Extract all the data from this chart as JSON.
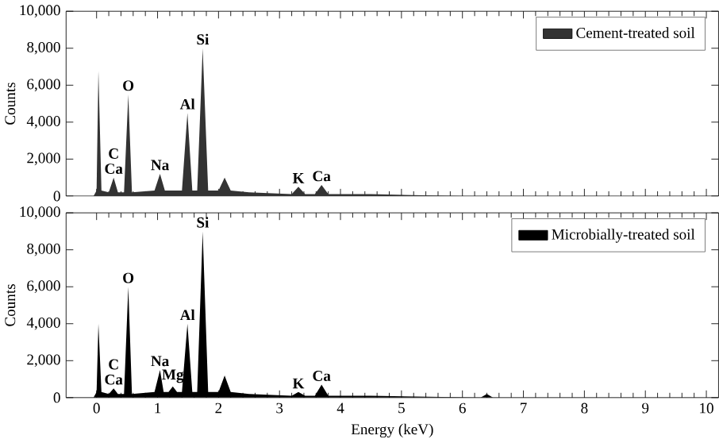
{
  "chart_data": [
    {
      "type": "area",
      "ylabel": "Counts",
      "xlim": [
        -0.5,
        10.2
      ],
      "ylim": [
        0,
        10000
      ],
      "tick_labels": "y",
      "legend": "top right",
      "xticks": [
        0,
        1,
        2,
        3,
        4,
        5,
        6,
        7,
        8,
        9,
        10
      ],
      "yticks": [
        0,
        {
          "value": 2000,
          "label": "2,000"
        },
        {
          "value": 4000,
          "label": "4,000"
        },
        {
          "value": 6000,
          "label": "6,000"
        },
        {
          "value": 8000,
          "label": "8,000"
        },
        {
          "value": 10000,
          "label": "10,000"
        }
      ],
      "series": [
        {
          "name": "Cement-treated soil",
          "color": "#333333",
          "x": [
            -0.05,
            0.0,
            0.03,
            0.08,
            0.2,
            0.28,
            0.35,
            0.45,
            0.52,
            0.58,
            0.95,
            1.04,
            1.12,
            1.4,
            1.49,
            1.57,
            1.65,
            1.74,
            1.83,
            2.0,
            2.1,
            2.2,
            2.5,
            3.2,
            3.31,
            3.42,
            3.58,
            3.69,
            3.8,
            4.5,
            6.0,
            10.0
          ],
          "values": [
            0,
            300,
            6800,
            300,
            200,
            1000,
            200,
            200,
            5500,
            200,
            300,
            1200,
            300,
            300,
            4500,
            300,
            300,
            8000,
            300,
            300,
            1000,
            300,
            200,
            100,
            500,
            100,
            100,
            600,
            100,
            100,
            0,
            0
          ]
        }
      ],
      "annotations": [
        {
          "text": "Si",
          "x": 1.74,
          "y": 8000
        },
        {
          "text": "O",
          "x": 0.52,
          "y": 5500
        },
        {
          "text": "Al",
          "x": 1.49,
          "y": 4500
        },
        {
          "text": "Na",
          "x": 1.04,
          "y": 1200
        },
        {
          "text": "C",
          "x": 0.28,
          "y": 1000
        },
        {
          "text": "Ca",
          "x": 0.28,
          "y": 1000
        },
        {
          "text": "K",
          "x": 3.31,
          "y": 500
        },
        {
          "text": "Ca",
          "x": 3.69,
          "y": 600
        }
      ]
    },
    {
      "type": "area",
      "xlabel": "Energy (keV)",
      "ylabel": "Counts",
      "xlim": [
        -0.5,
        10.2
      ],
      "ylim": [
        0,
        10000
      ],
      "legend": "top right",
      "xticks": [
        0,
        1,
        2,
        3,
        4,
        5,
        6,
        7,
        8,
        9,
        10
      ],
      "yticks": [
        0,
        {
          "value": 2000,
          "label": "2,000"
        },
        {
          "value": 4000,
          "label": "4,000"
        },
        {
          "value": 6000,
          "label": "6,000"
        },
        {
          "value": 8000,
          "label": "8,000"
        },
        {
          "value": 10000,
          "label": "10,000"
        }
      ],
      "series": [
        {
          "name": "Microbially-treated soil",
          "color": "#000000",
          "x": [
            -0.05,
            0.0,
            0.03,
            0.08,
            0.2,
            0.28,
            0.35,
            0.45,
            0.52,
            0.58,
            0.95,
            1.04,
            1.1,
            1.18,
            1.25,
            1.32,
            1.4,
            1.49,
            1.57,
            1.65,
            1.74,
            1.83,
            2.0,
            2.1,
            2.2,
            2.5,
            3.2,
            3.31,
            3.42,
            3.58,
            3.69,
            3.8,
            4.5,
            6.3,
            6.4,
            6.5,
            10.0
          ],
          "values": [
            0,
            300,
            4000,
            300,
            200,
            500,
            200,
            200,
            6000,
            200,
            300,
            1500,
            300,
            300,
            600,
            300,
            300,
            4000,
            300,
            300,
            9000,
            300,
            300,
            1200,
            300,
            200,
            100,
            300,
            100,
            100,
            700,
            100,
            100,
            0,
            200,
            0,
            0
          ]
        }
      ],
      "annotations": [
        {
          "text": "Si",
          "x": 1.74,
          "y": 9000
        },
        {
          "text": "O",
          "x": 0.52,
          "y": 6000
        },
        {
          "text": "Al",
          "x": 1.49,
          "y": 4000
        },
        {
          "text": "Na",
          "x": 1.04,
          "y": 1500
        },
        {
          "text": "Mg",
          "x": 1.25,
          "y": 600
        },
        {
          "text": "C",
          "x": 0.28,
          "y": 500
        },
        {
          "text": "Ca",
          "x": 0.28,
          "y": 500
        },
        {
          "text": "K",
          "x": 3.31,
          "y": 300
        },
        {
          "text": "Ca",
          "x": 3.69,
          "y": 700
        }
      ]
    }
  ]
}
